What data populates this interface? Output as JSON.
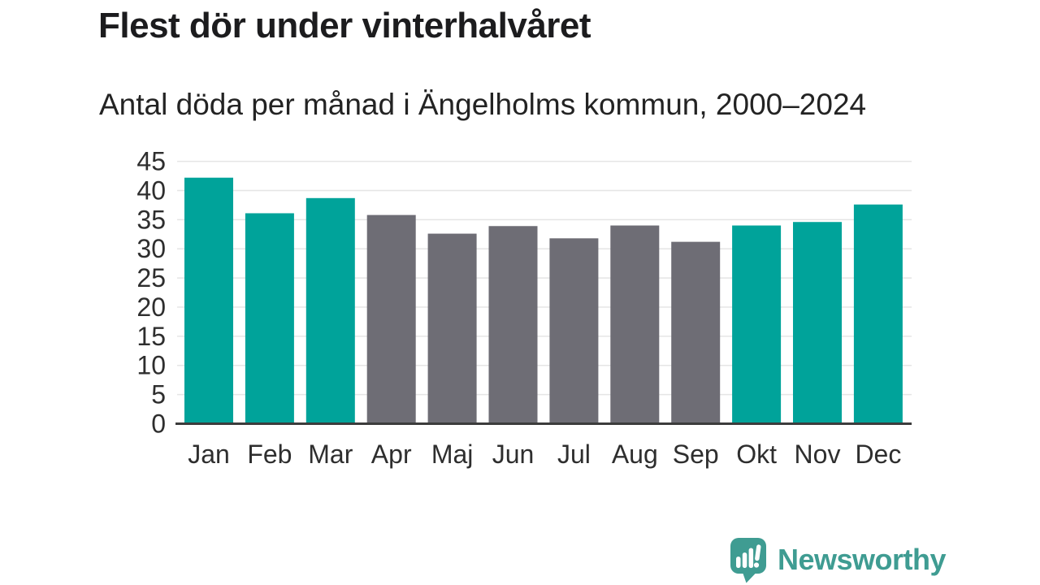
{
  "chart_data": {
    "type": "bar",
    "title": "Flest dör under vinterhalvåret",
    "subtitle": "Antal döda per månad i Ängelholms kommun, 2000–2024",
    "categories": [
      "Jan",
      "Feb",
      "Mar",
      "Apr",
      "Maj",
      "Jun",
      "Jul",
      "Aug",
      "Sep",
      "Okt",
      "Nov",
      "Dec"
    ],
    "values": [
      42.2,
      36.1,
      38.7,
      35.8,
      32.6,
      33.9,
      31.8,
      34.0,
      31.2,
      34.0,
      34.6,
      37.6
    ],
    "bar_color_keys": [
      "highlight",
      "highlight",
      "highlight",
      "base",
      "base",
      "base",
      "base",
      "base",
      "base",
      "highlight",
      "highlight",
      "highlight"
    ],
    "bar_palette": {
      "highlight": "#00A39A",
      "base": "#6E6D75"
    },
    "yticks": [
      0,
      5,
      10,
      15,
      20,
      25,
      30,
      35,
      40,
      45
    ],
    "ylim": [
      0,
      45
    ],
    "xlabel": "",
    "ylabel": "",
    "grid": "horizontal",
    "legend": "none"
  },
  "colors": {
    "title": "#1C1C1E",
    "subtitle": "#232323",
    "axis_text": "#2E2E2E",
    "gridline": "#E5E5E5",
    "axis_line": "#3C3C3C",
    "background": "#FFFFFF",
    "logo": "#3F9C92"
  },
  "branding": {
    "logo_text": "Newsworthy",
    "logo_icon": "speech-bubble-with-bar-chart-and-exclamation"
  }
}
